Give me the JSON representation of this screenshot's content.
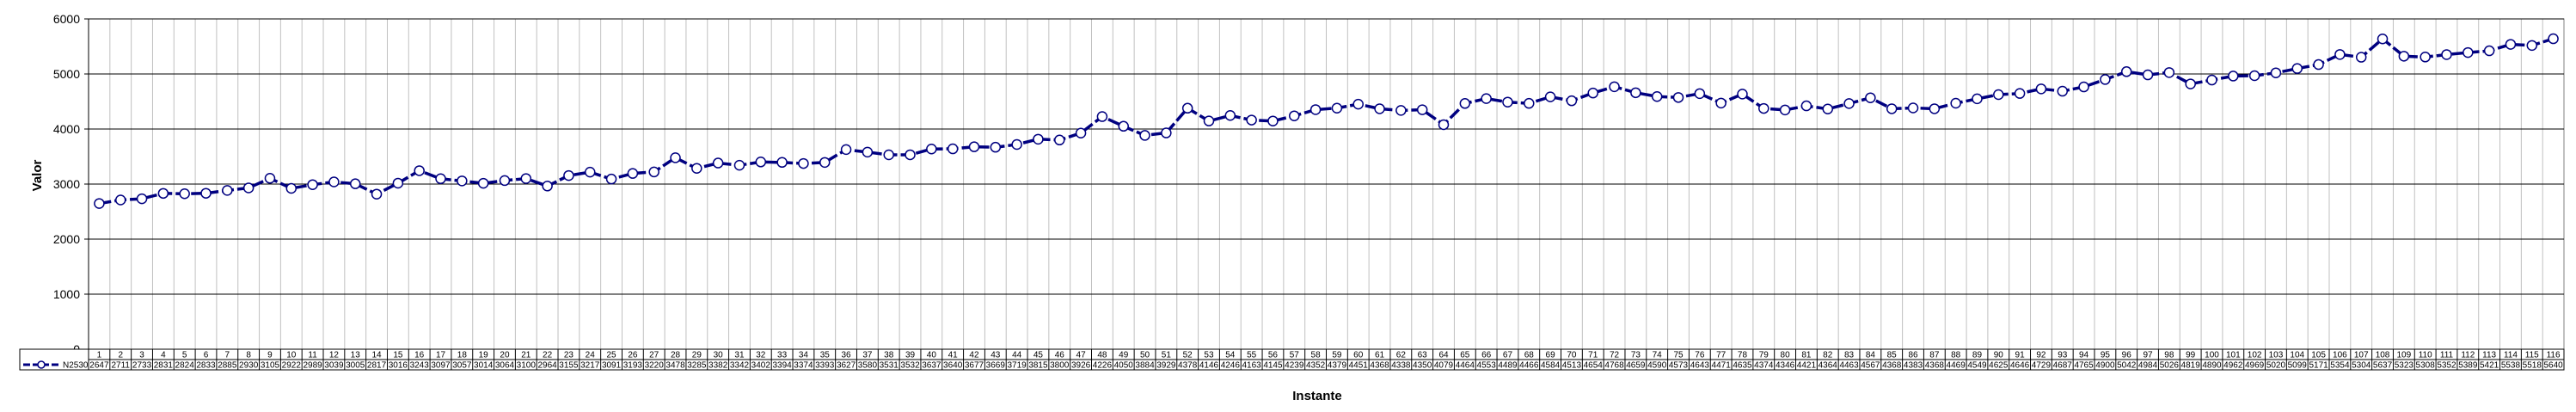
{
  "chart_data": {
    "type": "line",
    "title": "",
    "xlabel": "Instante",
    "ylabel": "Valor",
    "ylim": [
      0,
      6000
    ],
    "yticks": [
      0,
      1000,
      2000,
      3000,
      4000,
      5000,
      6000
    ],
    "grid": true,
    "legend": "data-table-left",
    "series_color": "#000080",
    "marker_fill": "#ffffff",
    "categories": [
      "1",
      "2",
      "3",
      "4",
      "5",
      "6",
      "7",
      "8",
      "9",
      "10",
      "11",
      "12",
      "13",
      "14",
      "15",
      "16",
      "17",
      "18",
      "19",
      "20",
      "21",
      "22",
      "23",
      "24",
      "25",
      "26",
      "27",
      "28",
      "29",
      "30",
      "31",
      "32",
      "33",
      "34",
      "35",
      "36",
      "37",
      "38",
      "39",
      "40",
      "41",
      "42",
      "43",
      "44",
      "45",
      "46",
      "47",
      "48",
      "49",
      "50",
      "51",
      "52",
      "53",
      "54",
      "55",
      "56",
      "57",
      "58",
      "59",
      "60",
      "61",
      "62",
      "63",
      "64",
      "65",
      "66",
      "67",
      "68",
      "69",
      "70",
      "71",
      "72",
      "73",
      "74",
      "75",
      "76",
      "77",
      "78",
      "79",
      "80",
      "81",
      "82",
      "83",
      "84",
      "85",
      "86",
      "87",
      "88",
      "89",
      "90",
      "91",
      "92",
      "93",
      "94",
      "95",
      "96",
      "97",
      "98",
      "99",
      "100",
      "101",
      "102",
      "103",
      "104",
      "105",
      "106",
      "107",
      "108",
      "109",
      "110",
      "111",
      "112",
      "113",
      "114",
      "115",
      "116"
    ],
    "series": [
      {
        "name": "N2530",
        "values": [
          2647,
          2711,
          2733,
          2831,
          2824,
          2833,
          2885,
          2930,
          3105,
          2922,
          2989,
          3039,
          3005,
          2817,
          3016,
          3243,
          3097,
          3057,
          3014,
          3064,
          3100,
          2964,
          3155,
          3217,
          3091,
          3193,
          3220,
          3478,
          3285,
          3382,
          3342,
          3402,
          3394,
          3374,
          3393,
          3627,
          3580,
          3531,
          3532,
          3637,
          3640,
          3677,
          3669,
          3719,
          3815,
          3800,
          3926,
          4226,
          4050,
          3884,
          3929,
          4378,
          4146,
          4246,
          4163,
          4145,
          4239,
          4352,
          4379,
          4451,
          4368,
          4338,
          4350,
          4079,
          4464,
          4553,
          4489,
          4466,
          4584,
          4513,
          4654,
          4768,
          4659,
          4590,
          4573,
          4643,
          4471,
          4635,
          4374,
          4346,
          4421,
          4364,
          4463,
          4567,
          4368,
          4383,
          4368,
          4469,
          4549,
          4625,
          4646,
          4729,
          4687,
          4765,
          4900,
          5042,
          4984,
          5026,
          4819,
          4890,
          4962,
          4969,
          5020,
          5099,
          5171,
          5354,
          5304,
          5637,
          5323,
          5308,
          5352,
          5389,
          5421,
          5538,
          5518,
          5640
        ]
      }
    ]
  }
}
